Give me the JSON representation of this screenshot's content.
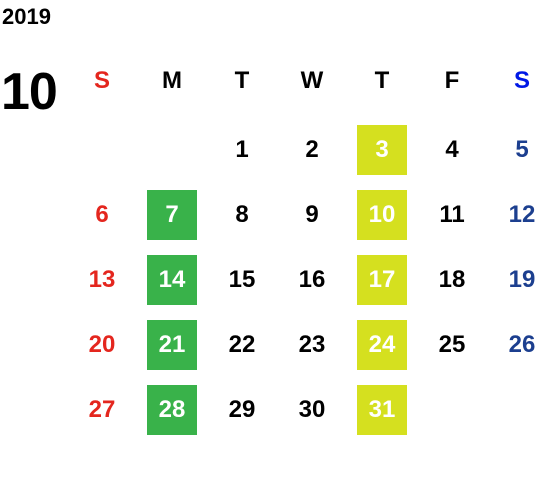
{
  "calendar": {
    "year": "2019",
    "month": "10",
    "weekday_labels": [
      "S",
      "M",
      "T",
      "W",
      "T",
      "F",
      "S"
    ],
    "highlight_colors": {
      "green": "#39b24a",
      "yellow": "#d5e01f",
      "sunday_text": "#e4261e",
      "saturday_text": "#1c3f8f"
    },
    "weeks": [
      [
        "",
        "",
        "1",
        "2",
        "3",
        "4",
        "5"
      ],
      [
        "6",
        "7",
        "8",
        "9",
        "10",
        "11",
        "12"
      ],
      [
        "13",
        "14",
        "15",
        "16",
        "17",
        "18",
        "19"
      ],
      [
        "20",
        "21",
        "22",
        "23",
        "24",
        "25",
        "26"
      ],
      [
        "27",
        "28",
        "29",
        "30",
        "31",
        "",
        ""
      ]
    ],
    "green_days": [
      "7",
      "14",
      "21",
      "28"
    ],
    "yellow_days": [
      "3",
      "10",
      "17",
      "24",
      "31"
    ]
  }
}
